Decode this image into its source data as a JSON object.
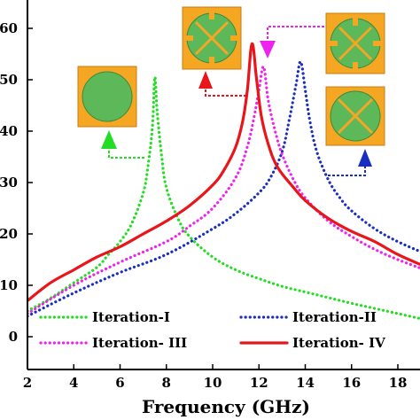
{
  "chart_data": {
    "type": "line",
    "title": "",
    "xlabel": "Frequency (GHz)",
    "ylabel": "",
    "xlim": [
      2,
      19
    ],
    "ylim": [
      -5,
      65
    ],
    "xticks": [
      "2",
      "4",
      "6",
      "8",
      "10",
      "12",
      "14",
      "16",
      "18"
    ],
    "yticks": [
      "0",
      "10",
      "20",
      "30",
      "40",
      "50",
      "60"
    ],
    "xtick_values": [
      2,
      4,
      6,
      8,
      10,
      12,
      14,
      16,
      18
    ],
    "ytick_values": [
      0,
      10,
      20,
      30,
      40,
      50,
      60
    ],
    "grid": false,
    "legend_position": "bottom",
    "series": [
      {
        "name": "Iteration-I",
        "color": "#22dd22",
        "style": "dotted",
        "x": [
          2,
          3,
          4,
          5,
          5.5,
          6,
          6.5,
          7,
          7.2,
          7.4,
          7.5,
          7.6,
          7.8,
          8,
          8.5,
          9,
          10,
          11,
          12,
          13,
          14,
          15,
          16,
          17,
          18,
          19
        ],
        "y": [
          5,
          7.5,
          10.5,
          13.5,
          16,
          18.5,
          22,
          28,
          33,
          41,
          50.5,
          44,
          35,
          29,
          23,
          19.5,
          15.5,
          13,
          11.3,
          9.8,
          8.7,
          7.6,
          6.5,
          5.5,
          4.5,
          3.5
        ]
      },
      {
        "name": "Iteration-II",
        "color": "#1a2fbf",
        "style": "dotted",
        "x": [
          2,
          4,
          6,
          8,
          10,
          11,
          12,
          12.5,
          13,
          13.3,
          13.6,
          13.8,
          14,
          14.2,
          14.5,
          15,
          15.5,
          16,
          17,
          18,
          19
        ],
        "y": [
          4,
          8.5,
          12.5,
          16,
          21,
          24,
          28,
          31,
          36,
          42,
          49,
          53.5,
          48,
          42,
          36,
          30.5,
          27,
          24.5,
          21,
          18.5,
          16.5
        ]
      },
      {
        "name": "Iteration- III",
        "color": "#ee22ee",
        "style": "dotted",
        "x": [
          2,
          4,
          6,
          8,
          9,
          10,
          11,
          11.5,
          11.8,
          12,
          12.2,
          12.4,
          12.7,
          13,
          13.5,
          14,
          15,
          16,
          17,
          18,
          19
        ],
        "y": [
          4.5,
          10,
          14.5,
          18.5,
          21.5,
          25,
          31,
          37,
          43,
          48,
          52.5,
          46,
          40,
          35.5,
          30.5,
          27,
          22.5,
          19.5,
          17,
          15,
          13.3
        ]
      },
      {
        "name": "Iteration- IV",
        "color": "#e8161a",
        "style": "solid",
        "x": [
          2,
          3,
          4,
          5,
          6,
          7,
          8,
          9,
          10,
          10.5,
          11,
          11.3,
          11.5,
          11.7,
          11.9,
          12.1,
          12.4,
          12.8,
          13.5,
          14,
          15,
          16,
          17,
          18,
          19
        ],
        "y": [
          7,
          10.5,
          13,
          15.5,
          17.5,
          20,
          22.5,
          25.5,
          29.5,
          32.5,
          37,
          42,
          48,
          57,
          50,
          43,
          37.5,
          33,
          29,
          26.5,
          23,
          20.5,
          18.5,
          16,
          14
        ]
      }
    ]
  },
  "insets": [
    {
      "name": "antenna-iteration-1"
    },
    {
      "name": "antenna-iteration-2"
    },
    {
      "name": "antenna-iteration-3"
    },
    {
      "name": "antenna-iteration-4"
    }
  ]
}
